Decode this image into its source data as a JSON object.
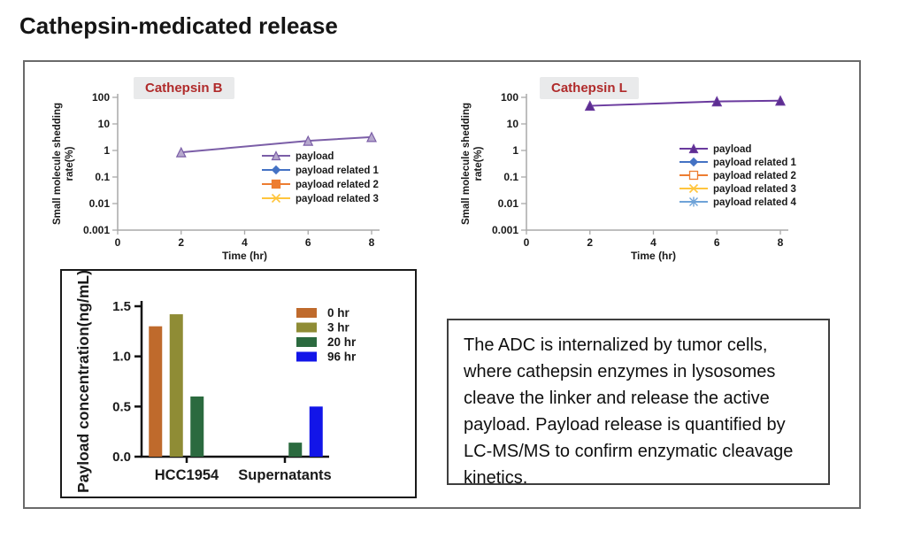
{
  "page": {
    "title": "Cathepsin-medicated release"
  },
  "note": {
    "text": "The ADC is internalized by tumor cells, where cathepsin enzymes in lysosomes cleave the linker and release the active payload. Payload release is quantified by LC-MS/MS to confirm enzymatic cleavage kinetics."
  },
  "chart_data": [
    {
      "id": "cathepsin-b",
      "type": "line",
      "title": "Cathepsin B",
      "title_color": "#b02b2b",
      "xlabel": "Time (hr)",
      "ylabel_lines": [
        "Small molecule shedding",
        "rate(%)"
      ],
      "x_ticks": [
        0,
        2,
        4,
        6,
        8
      ],
      "xlim": [
        0,
        8.5
      ],
      "yscale": "log",
      "y_ticks": {
        "labels": [
          "100",
          "10",
          "1",
          "0.1",
          "0.01",
          "0.001"
        ],
        "values": [
          100,
          10,
          1,
          0.1,
          0.01,
          0.001
        ]
      },
      "axis_color": "#a9a9a9",
      "series": [
        {
          "name": "payload",
          "marker": "triangle",
          "color": "#7b5ea7",
          "marker_fill": "#b6a8cd",
          "x": [
            2,
            6,
            8
          ],
          "y": [
            0.85,
            2.3,
            3.2
          ]
        },
        {
          "name": "payload related 1",
          "marker": "diamond",
          "color": "#4472c4",
          "marker_fill": "#4472c4",
          "x": [],
          "y": []
        },
        {
          "name": "payload related 2",
          "marker": "square",
          "color": "#ed7d31",
          "marker_fill": "#ed7d31",
          "x": [],
          "y": []
        },
        {
          "name": "payload related 3",
          "marker": "x",
          "color": "#ffc53d",
          "marker_fill": "#ffc53d",
          "x": [],
          "y": []
        }
      ],
      "legend_position": "inside-right"
    },
    {
      "id": "cathepsin-l",
      "type": "line",
      "title": "Cathepsin L",
      "title_color": "#b02b2b",
      "xlabel": "Time (hr)",
      "ylabel_lines": [
        "Small molecule shedding",
        "rate(%)"
      ],
      "x_ticks": [
        0,
        2,
        4,
        6,
        8
      ],
      "xlim": [
        0,
        8.5
      ],
      "yscale": "log",
      "y_ticks": {
        "labels": [
          "100",
          "10",
          "1",
          "0.1",
          "0.01",
          "0.001"
        ],
        "values": [
          100,
          10,
          1,
          0.1,
          0.01,
          0.001
        ]
      },
      "axis_color": "#a9a9a9",
      "series": [
        {
          "name": "payload",
          "marker": "triangle",
          "color": "#6a3a9e",
          "marker_fill": "#5c2d91",
          "x": [
            2,
            6,
            8
          ],
          "y": [
            48,
            70,
            75
          ]
        },
        {
          "name": "payload related 1",
          "marker": "diamond",
          "color": "#4472c4",
          "marker_fill": "#4472c4",
          "x": [],
          "y": []
        },
        {
          "name": "payload related 2",
          "marker": "square-open",
          "color": "#ed7d31",
          "marker_fill": "#ffffff",
          "x": [],
          "y": []
        },
        {
          "name": "payload related 3",
          "marker": "x",
          "color": "#ffc53d",
          "marker_fill": "#ffc53d",
          "x": [],
          "y": []
        },
        {
          "name": "payload related 4",
          "marker": "asterisk",
          "color": "#6fa3d8",
          "marker_fill": "#6fa3d8",
          "x": [],
          "y": []
        }
      ],
      "legend_position": "inside-right"
    },
    {
      "id": "payload-concentration",
      "type": "bar",
      "title": "",
      "ylabel": "Payload concentration(ng/mL)",
      "categories": [
        "HCC1954",
        "Supernatants"
      ],
      "ylim": [
        0,
        1.5
      ],
      "y_ticks": {
        "labels": [
          "0.0",
          "0.5",
          "1.0",
          "1.5"
        ],
        "values": [
          0,
          0.5,
          1,
          1.5
        ]
      },
      "axis_color": "#111111",
      "series": [
        {
          "name": "0 hr",
          "color": "#bf6a2c",
          "values": [
            1.3,
            0
          ]
        },
        {
          "name": "3 hr",
          "color": "#8f8c35",
          "values": [
            1.42,
            0
          ]
        },
        {
          "name": "20 hr",
          "color": "#2b6a3f",
          "values": [
            0.6,
            0.14
          ]
        },
        {
          "name": "96 hr",
          "color": "#1215e8",
          "values": [
            0,
            0.5
          ]
        }
      ],
      "legend_position": "inside-right"
    }
  ]
}
